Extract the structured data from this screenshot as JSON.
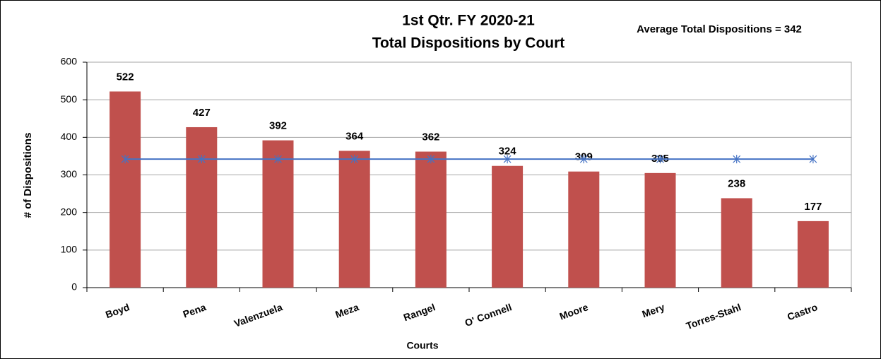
{
  "chart_data": {
    "type": "bar",
    "title": "1st Qtr. FY 2020-21",
    "subtitle": "Total Dispositions by Court",
    "annotation": "Average Total Dispositions = 342",
    "x_label": "Courts",
    "y_label": "# of Dispositions",
    "categories": [
      "Boyd",
      "Pena",
      "Valenzuela",
      "Meza",
      "Rangel",
      "O' Connell",
      "Moore",
      "Mery",
      "Torres-Stahl",
      "Castro"
    ],
    "values": [
      522,
      427,
      392,
      364,
      362,
      324,
      309,
      305,
      238,
      177
    ],
    "color": "#c0504d",
    "line_series": {
      "type": "line",
      "color": "#4472c4",
      "values": [
        342,
        342,
        342,
        342,
        342,
        342,
        342,
        342,
        342,
        342
      ]
    },
    "ylim": [
      0,
      600
    ],
    "yticks": [
      0,
      100,
      200,
      300,
      400,
      500,
      600
    ],
    "grid": true
  }
}
